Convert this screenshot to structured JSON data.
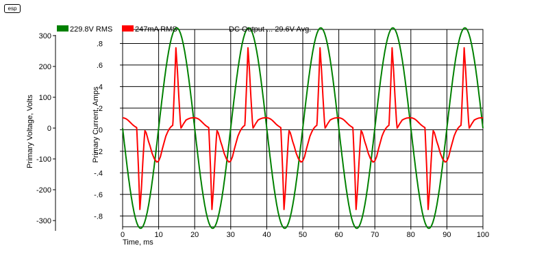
{
  "logo_text": "esp",
  "chart_data": {
    "type": "line",
    "annotation": "DC Output ... 29.6V Avg.",
    "xlabel": "Time, ms",
    "xlim": [
      0,
      100
    ],
    "xticks": [
      0,
      10,
      20,
      30,
      40,
      50,
      60,
      70,
      80,
      90,
      100
    ],
    "left_axis": {
      "label": "Primary Voltage, Volts",
      "ylim": [
        -320,
        320
      ],
      "ticks": [
        300,
        200,
        100,
        0,
        -100,
        -200,
        -300
      ]
    },
    "right_axis": {
      "label": "Primary Current, Amps",
      "ylim": [
        -0.9,
        0.93
      ],
      "ticks": [
        0.8,
        0.6,
        0.4,
        0.2,
        0,
        -0.2,
        -0.4,
        -0.6,
        -0.8
      ]
    },
    "grid": true,
    "legend_position": "top-left",
    "series": [
      {
        "name": "229.8V RMS",
        "color": "#008000",
        "axis": "left",
        "shape": "sine",
        "amplitude": 325,
        "frequency_hz": 50,
        "x": [
          0,
          5,
          10,
          15,
          20,
          25,
          30,
          35,
          40,
          45,
          50,
          55,
          60,
          65,
          70,
          75,
          80,
          85,
          90,
          95,
          100
        ],
        "y": [
          0,
          -325,
          0,
          325,
          0,
          -325,
          0,
          325,
          0,
          -325,
          0,
          325,
          0,
          -325,
          0,
          325,
          0,
          -325,
          0,
          325,
          0
        ]
      },
      {
        "name": "247mA RMS",
        "color": "#ff0000",
        "axis": "right",
        "period_ms": 20,
        "cycle_x": [
          0,
          0.5,
          1.0,
          1.5,
          2.0,
          2.5,
          3.0,
          3.5,
          3.9,
          4.0,
          4.4,
          4.8,
          5.2,
          5.6,
          6.0,
          6.2,
          6.5,
          6.8,
          7.2,
          7.6,
          8.2,
          8.8,
          9.5,
          10.0,
          10.5,
          11.0,
          11.5,
          12.0,
          12.5,
          13.0,
          13.5,
          13.9,
          14.0,
          14.4,
          14.8,
          15.2,
          15.6,
          16.0,
          16.2,
          16.5,
          16.8,
          17.2,
          17.6,
          18.2,
          18.8,
          19.5,
          20.0
        ],
        "cycle_y": [
          0.11,
          0.108,
          0.1,
          0.088,
          0.072,
          0.055,
          0.04,
          0.028,
          0.02,
          -0.04,
          -0.35,
          -0.74,
          -0.55,
          -0.3,
          -0.08,
          -0.01,
          -0.025,
          -0.06,
          -0.11,
          -0.15,
          -0.22,
          -0.27,
          -0.3,
          -0.29,
          -0.25,
          -0.18,
          -0.12,
          -0.06,
          -0.02,
          0.01,
          0.03,
          0.04,
          0.08,
          0.4,
          0.76,
          0.55,
          0.3,
          0.08,
          0.015,
          0.03,
          0.05,
          0.07,
          0.09,
          0.1,
          0.108,
          0.11,
          0.11
        ]
      }
    ]
  }
}
